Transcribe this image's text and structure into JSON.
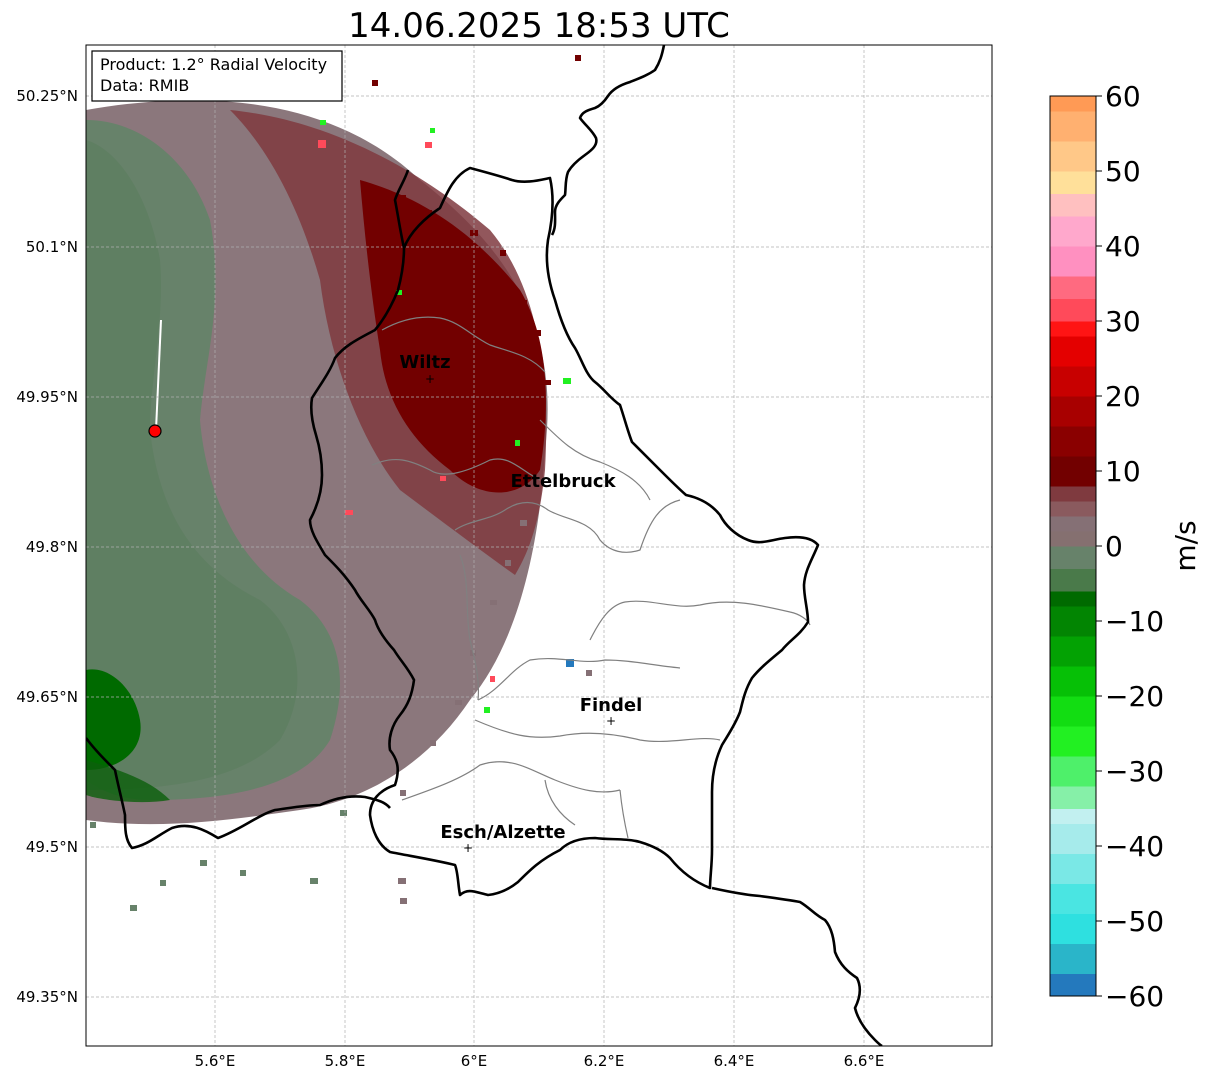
{
  "title": "14.06.2025 18:53 UTC",
  "info_box": {
    "product": "Product: 1.2° Radial Velocity",
    "source": "Data: RMIB"
  },
  "x_ticks": [
    "5.6°E",
    "5.8°E",
    "6°E",
    "6.2°E",
    "6.4°E",
    "6.6°E"
  ],
  "y_ticks": [
    "50.25°N",
    "50.1°N",
    "49.95°N",
    "49.8°N",
    "49.65°N",
    "49.5°N",
    "49.35°N"
  ],
  "cities": [
    {
      "name": "Wiltz",
      "lon": 5.93,
      "lat": 49.965
    },
    {
      "name": "Ettelbruck",
      "lon": 6.1,
      "lat": 49.85
    },
    {
      "name": "Findel",
      "lon": 6.21,
      "lat": 49.627
    },
    {
      "name": "Esch/Alzette",
      "lon": 5.99,
      "lat": 49.5
    }
  ],
  "radar_site": {
    "lon": 5.505,
    "lat": 49.915,
    "color": "#ff0000"
  },
  "colorbar": {
    "label": "m/s",
    "ticks": [
      "60",
      "50",
      "40",
      "30",
      "20",
      "10",
      "0",
      "−10",
      "−20",
      "−30",
      "−40",
      "−50",
      "−60"
    ],
    "range": [
      -60,
      60
    ],
    "colors": [
      {
        "from": -60,
        "to": -57,
        "color": "#2479bd"
      },
      {
        "from": -57,
        "to": -53,
        "color": "#2ab5c9"
      },
      {
        "from": -53,
        "to": -49,
        "color": "#2ee0e0"
      },
      {
        "from": -49,
        "to": -45,
        "color": "#4ae5e2"
      },
      {
        "from": -45,
        "to": -41,
        "color": "#7ae8e6"
      },
      {
        "from": -41,
        "to": -37,
        "color": "#a6ebeb"
      },
      {
        "from": -37,
        "to": -35,
        "color": "#c2f0f0"
      },
      {
        "from": -35,
        "to": -32,
        "color": "#86f0a8"
      },
      {
        "from": -32,
        "to": -28,
        "color": "#4ef06a"
      },
      {
        "from": -28,
        "to": -24,
        "color": "#22f022"
      },
      {
        "from": -24,
        "to": -20,
        "color": "#12dd12"
      },
      {
        "from": -20,
        "to": -16,
        "color": "#06c006"
      },
      {
        "from": -16,
        "to": -12,
        "color": "#03a203"
      },
      {
        "from": -12,
        "to": -8,
        "color": "#028502"
      },
      {
        "from": -8,
        "to": -6,
        "color": "#006a00"
      },
      {
        "from": -6,
        "to": -3,
        "color": "#4a7a4a"
      },
      {
        "from": -3,
        "to": 0,
        "color": "#67826a"
      },
      {
        "from": 0,
        "to": 2,
        "color": "#857070"
      },
      {
        "from": 2,
        "to": 4,
        "color": "#857075"
      },
      {
        "from": 4,
        "to": 6,
        "color": "#8a5a5e"
      },
      {
        "from": 6,
        "to": 8,
        "color": "#7f3a3f"
      },
      {
        "from": 8,
        "to": 12,
        "color": "#720000"
      },
      {
        "from": 12,
        "to": 16,
        "color": "#8a0000"
      },
      {
        "from": 16,
        "to": 20,
        "color": "#a80000"
      },
      {
        "from": 20,
        "to": 24,
        "color": "#c80000"
      },
      {
        "from": 24,
        "to": 28,
        "color": "#e40000"
      },
      {
        "from": 28,
        "to": 30,
        "color": "#ff1414"
      },
      {
        "from": 30,
        "to": 33,
        "color": "#ff4a5a"
      },
      {
        "from": 33,
        "to": 36,
        "color": "#ff6a80"
      },
      {
        "from": 36,
        "to": 40,
        "color": "#ff90c0"
      },
      {
        "from": 40,
        "to": 44,
        "color": "#ffa8cc"
      },
      {
        "from": 44,
        "to": 47,
        "color": "#ffc0c0"
      },
      {
        "from": 47,
        "to": 50,
        "color": "#ffe09a"
      },
      {
        "from": 50,
        "to": 54,
        "color": "#ffc888"
      },
      {
        "from": 54,
        "to": 58,
        "color": "#ffb070"
      },
      {
        "from": 58,
        "to": 60,
        "color": "#ff9a55"
      }
    ]
  }
}
